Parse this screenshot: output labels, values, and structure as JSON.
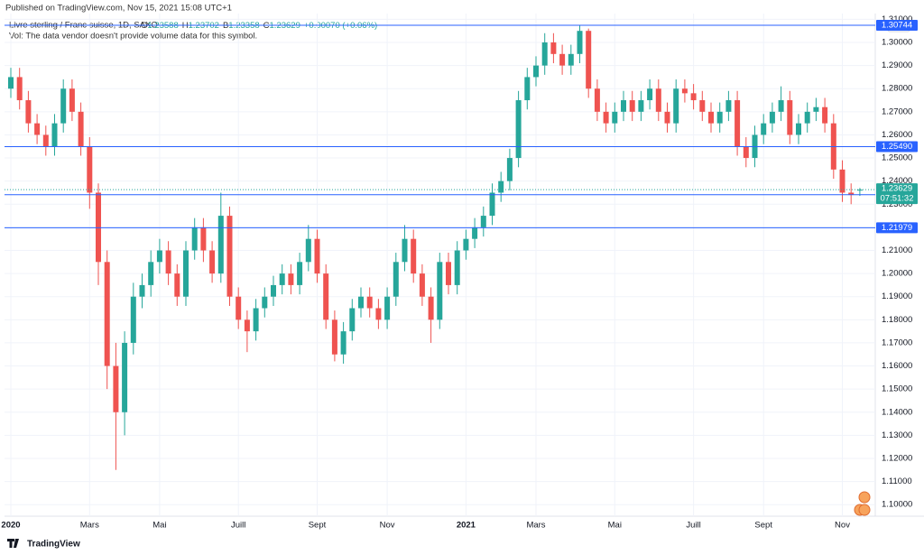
{
  "published": "Published on TradingView.com, Nov 15, 2021 15:08 UTC+1",
  "footer": "TradingView",
  "chart_data": {
    "type": "candlestick",
    "title": "Livre sterling / Franc suisse, 1D, SAXO",
    "legend_values": [
      {
        "key": "O",
        "value": "1.23588"
      },
      {
        "key": "H",
        "value": "1.23702"
      },
      {
        "key": "B",
        "value": "1.23358"
      },
      {
        "key": "C",
        "value": "1.23629"
      }
    ],
    "change": "+0.00070 (+0.06%)",
    "volume_note": "Vol: The data vendor doesn't provide volume data for this symbol.",
    "currency": "CHF",
    "up_color": "#26a69a",
    "down_color": "#ef5350",
    "level_color": "#2962ff",
    "grid": true,
    "categories": [
      "2020",
      null,
      null,
      null,
      null,
      null,
      null,
      null,
      null,
      "Mars",
      null,
      null,
      null,
      null,
      null,
      null,
      null,
      "Mai",
      null,
      null,
      null,
      null,
      null,
      null,
      null,
      null,
      "Juill",
      null,
      null,
      null,
      null,
      null,
      null,
      null,
      null,
      "Sept",
      null,
      null,
      null,
      null,
      null,
      null,
      null,
      "Nov",
      null,
      null,
      null,
      null,
      null,
      null,
      null,
      null,
      "2021",
      null,
      null,
      null,
      null,
      null,
      null,
      null,
      "Mars",
      null,
      null,
      null,
      null,
      null,
      null,
      null,
      null,
      "Mai",
      null,
      null,
      null,
      null,
      null,
      null,
      null,
      null,
      "Juill",
      null,
      null,
      null,
      null,
      null,
      null,
      null,
      "Sept",
      null,
      null,
      null,
      null,
      null,
      null,
      null,
      null,
      "Nov",
      null,
      null
    ],
    "open": [
      1.28,
      1.285,
      1.275,
      1.265,
      1.26,
      1.255,
      1.265,
      1.28,
      1.27,
      1.255,
      1.235,
      1.205,
      1.16,
      1.14,
      1.17,
      1.19,
      1.195,
      1.205,
      1.21,
      1.2,
      1.19,
      1.21,
      1.22,
      1.21,
      1.2,
      1.225,
      1.19,
      1.18,
      1.175,
      1.185,
      1.19,
      1.195,
      1.2,
      1.195,
      1.205,
      1.215,
      1.2,
      1.18,
      1.165,
      1.175,
      1.185,
      1.19,
      1.185,
      1.18,
      1.19,
      1.205,
      1.215,
      1.2,
      1.19,
      1.18,
      1.205,
      1.195,
      1.21,
      1.215,
      1.22,
      1.225,
      1.235,
      1.24,
      1.25,
      1.275,
      1.285,
      1.29,
      1.3,
      1.295,
      1.29,
      1.295,
      1.305,
      1.28,
      1.27,
      1.265,
      1.27,
      1.275,
      1.27,
      1.275,
      1.28,
      1.27,
      1.265,
      1.28,
      1.278,
      1.275,
      1.27,
      1.265,
      1.27,
      1.275,
      1.255,
      1.25,
      1.26,
      1.265,
      1.27,
      1.275,
      1.26,
      1.265,
      1.27,
      1.272,
      1.265,
      1.245,
      1.235,
      1.23588
    ],
    "high": [
      1.289,
      1.289,
      1.279,
      1.269,
      1.264,
      1.269,
      1.284,
      1.284,
      1.274,
      1.259,
      1.239,
      1.21,
      1.17,
      1.175,
      1.196,
      1.2,
      1.21,
      1.215,
      1.214,
      1.204,
      1.214,
      1.224,
      1.224,
      1.214,
      1.235,
      1.229,
      1.194,
      1.184,
      1.189,
      1.194,
      1.199,
      1.204,
      1.204,
      1.209,
      1.221,
      1.219,
      1.204,
      1.184,
      1.179,
      1.189,
      1.194,
      1.194,
      1.189,
      1.194,
      1.209,
      1.221,
      1.219,
      1.204,
      1.194,
      1.209,
      1.209,
      1.214,
      1.219,
      1.224,
      1.229,
      1.239,
      1.244,
      1.254,
      1.279,
      1.289,
      1.294,
      1.304,
      1.304,
      1.299,
      1.299,
      1.3075,
      1.306,
      1.284,
      1.274,
      1.274,
      1.279,
      1.279,
      1.279,
      1.284,
      1.284,
      1.274,
      1.284,
      1.284,
      1.282,
      1.279,
      1.274,
      1.274,
      1.279,
      1.279,
      1.259,
      1.264,
      1.269,
      1.274,
      1.281,
      1.279,
      1.269,
      1.274,
      1.276,
      1.276,
      1.269,
      1.249,
      1.239,
      1.23702
    ],
    "low": [
      1.276,
      1.271,
      1.261,
      1.256,
      1.251,
      1.251,
      1.261,
      1.266,
      1.251,
      1.228,
      1.195,
      1.15,
      1.115,
      1.13,
      1.165,
      1.185,
      1.19,
      1.2,
      1.195,
      1.186,
      1.186,
      1.206,
      1.205,
      1.196,
      1.196,
      1.186,
      1.176,
      1.166,
      1.171,
      1.181,
      1.186,
      1.191,
      1.191,
      1.191,
      1.201,
      1.196,
      1.176,
      1.162,
      1.161,
      1.171,
      1.181,
      1.181,
      1.176,
      1.176,
      1.186,
      1.201,
      1.196,
      1.186,
      1.17,
      1.176,
      1.191,
      1.191,
      1.206,
      1.211,
      1.216,
      1.221,
      1.231,
      1.236,
      1.246,
      1.271,
      1.281,
      1.286,
      1.291,
      1.286,
      1.286,
      1.291,
      1.276,
      1.266,
      1.261,
      1.261,
      1.266,
      1.266,
      1.266,
      1.271,
      1.266,
      1.261,
      1.261,
      1.274,
      1.271,
      1.266,
      1.261,
      1.261,
      1.266,
      1.251,
      1.246,
      1.246,
      1.256,
      1.261,
      1.266,
      1.256,
      1.256,
      1.261,
      1.266,
      1.261,
      1.241,
      1.231,
      1.23,
      1.23358
    ],
    "close": [
      1.285,
      1.275,
      1.265,
      1.26,
      1.255,
      1.265,
      1.28,
      1.27,
      1.255,
      1.235,
      1.205,
      1.16,
      1.14,
      1.17,
      1.19,
      1.195,
      1.205,
      1.21,
      1.2,
      1.19,
      1.21,
      1.22,
      1.21,
      1.2,
      1.225,
      1.19,
      1.18,
      1.175,
      1.185,
      1.19,
      1.195,
      1.2,
      1.195,
      1.205,
      1.215,
      1.2,
      1.18,
      1.165,
      1.175,
      1.185,
      1.19,
      1.185,
      1.18,
      1.19,
      1.205,
      1.215,
      1.2,
      1.19,
      1.18,
      1.205,
      1.195,
      1.21,
      1.215,
      1.22,
      1.225,
      1.235,
      1.24,
      1.25,
      1.275,
      1.285,
      1.29,
      1.3,
      1.295,
      1.29,
      1.295,
      1.305,
      1.28,
      1.27,
      1.265,
      1.27,
      1.275,
      1.27,
      1.275,
      1.28,
      1.27,
      1.265,
      1.28,
      1.278,
      1.275,
      1.27,
      1.265,
      1.27,
      1.275,
      1.255,
      1.25,
      1.26,
      1.265,
      1.27,
      1.275,
      1.26,
      1.265,
      1.27,
      1.272,
      1.265,
      1.245,
      1.235,
      1.234,
      1.23629
    ],
    "ylim": [
      1.095,
      1.3125
    ],
    "yticks": [
      {
        "value": 1.1,
        "label": "1.10000"
      },
      {
        "value": 1.11,
        "label": "1.11000"
      },
      {
        "value": 1.12,
        "label": "1.12000"
      },
      {
        "value": 1.13,
        "label": "1.13000"
      },
      {
        "value": 1.14,
        "label": "1.14000"
      },
      {
        "value": 1.15,
        "label": "1.15000"
      },
      {
        "value": 1.16,
        "label": "1.16000"
      },
      {
        "value": 1.17,
        "label": "1.17000"
      },
      {
        "value": 1.18,
        "label": "1.18000"
      },
      {
        "value": 1.19,
        "label": "1.19000"
      },
      {
        "value": 1.2,
        "label": "1.20000"
      },
      {
        "value": 1.21,
        "label": "1.21000"
      },
      {
        "value": 1.22,
        "label": "1.22000"
      },
      {
        "value": 1.23,
        "label": "1.23000"
      },
      {
        "value": 1.24,
        "label": "1.24000"
      },
      {
        "value": 1.25,
        "label": "1.25000"
      },
      {
        "value": 1.26,
        "label": "1.26000"
      },
      {
        "value": 1.27,
        "label": "1.27000"
      },
      {
        "value": 1.28,
        "label": "1.28000"
      },
      {
        "value": 1.29,
        "label": "1.29000"
      },
      {
        "value": 1.3,
        "label": "1.30000"
      },
      {
        "value": 1.31,
        "label": "1.31000"
      }
    ],
    "levels": [
      1.30744,
      {
        "value": 1.2549,
        "label": "1.25490"
      },
      1.23412,
      1.21979
    ],
    "last_price": 1.23629,
    "countdown": "07:51:32"
  }
}
